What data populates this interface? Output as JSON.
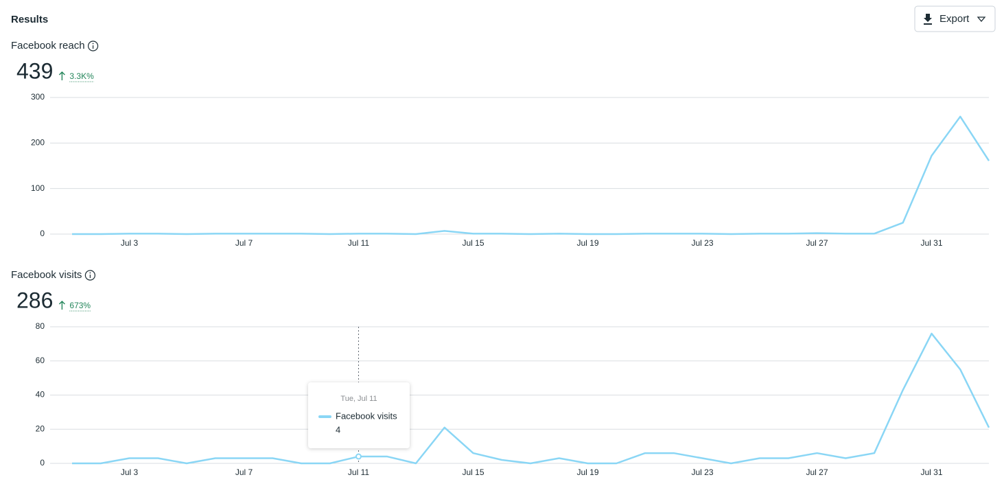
{
  "header": {
    "title": "Results",
    "export": "Export"
  },
  "chart_data": [
    {
      "type": "line",
      "title": "Facebook reach",
      "total": 439,
      "change": "3.3K%",
      "categories": [
        null,
        null,
        "Jul 3",
        null,
        null,
        null,
        "Jul 7",
        null,
        null,
        null,
        "Jul 11",
        null,
        null,
        null,
        "Jul 15",
        null,
        null,
        null,
        "Jul 19",
        null,
        null,
        null,
        "Jul 23",
        null,
        null,
        null,
        "Jul 27",
        null,
        null,
        null,
        "Jul 31",
        null,
        null
      ],
      "values": [
        0,
        0,
        1,
        1,
        0,
        1,
        1,
        1,
        1,
        0,
        1,
        1,
        0,
        7,
        1,
        1,
        0,
        1,
        0,
        0,
        1,
        1,
        1,
        0,
        1,
        1,
        2,
        1,
        1,
        25,
        172,
        258,
        161
      ],
      "color": "#8ad6f5",
      "ylim": [
        0,
        300
      ],
      "yticks": [
        0,
        100,
        200,
        300
      ],
      "grid": true
    },
    {
      "type": "line",
      "title": "Facebook visits",
      "total": 286,
      "change": "673%",
      "categories": [
        null,
        null,
        "Jul 3",
        null,
        null,
        null,
        "Jul 7",
        null,
        null,
        null,
        "Jul 11",
        null,
        null,
        null,
        "Jul 15",
        null,
        null,
        null,
        "Jul 19",
        null,
        null,
        null,
        "Jul 23",
        null,
        null,
        null,
        "Jul 27",
        null,
        null,
        null,
        "Jul 31",
        null,
        null
      ],
      "values": [
        0,
        0,
        3,
        3,
        0,
        3,
        3,
        3,
        0,
        0,
        4,
        4,
        0,
        21,
        6,
        2,
        0,
        3,
        0,
        0,
        6,
        6,
        3,
        0,
        3,
        3,
        6,
        3,
        6,
        43,
        76,
        55,
        21
      ],
      "color": "#8ad6f5",
      "ylim": [
        0,
        80
      ],
      "yticks": [
        0,
        20,
        40,
        60,
        80
      ],
      "grid": true,
      "tooltip": {
        "date": "Tue, Jul 11",
        "label": "Facebook visits"
      }
    }
  ]
}
